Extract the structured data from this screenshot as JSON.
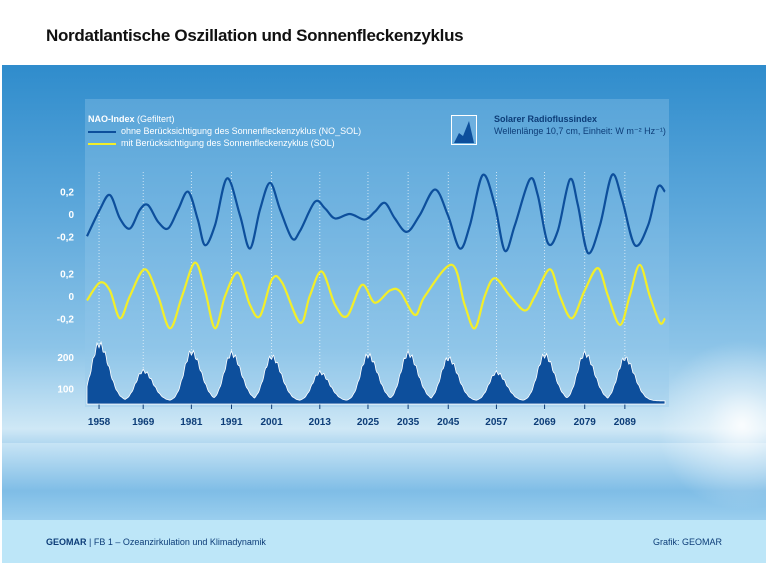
{
  "title": "Nordatlantische Oszillation und Sonnenfleckenzyklus",
  "footer": {
    "left_bold": "GEOMAR",
    "left_rest": " | FB 1 – Ozeanzirkulation und Klimadynamik",
    "right": "Grafik: GEOMAR"
  },
  "legend": {
    "heading": "NAO-Index",
    "heading_note": "(Gefiltert)",
    "no_sol": "ohne Berücksichtigung des Sonnenfleckenzyklus (NO_SOL)",
    "sol": "mit Berücksichtigung des Sonnenfleckenzyklus (SOL)",
    "flux_title": "Solarer Radioflussindex",
    "flux_sub": "Wellenlänge 10,7 cm, Einheit: W m⁻² Hz⁻¹)"
  },
  "colors": {
    "no_sol": "#0d4f9c",
    "sol": "#f2ee2a",
    "flux": "#0d4f9c"
  },
  "chart_data": [
    {
      "type": "line",
      "name": "NO_SOL",
      "ylim": [
        -0.35,
        0.35
      ],
      "yticks": [
        "0,2",
        "0",
        "-0,2"
      ],
      "ytick_values": [
        0.2,
        0,
        -0.2
      ],
      "x": [
        1955,
        1958.2,
        1960.7,
        1963.2,
        1965.7,
        1968.2,
        1970.2,
        1972.7,
        1975.2,
        1977.7,
        1980.2,
        1982.6,
        1984.4,
        1986.9,
        1989.9,
        1993.1,
        1995.6,
        1998.1,
        2000.6,
        2003.1,
        2006.1,
        2008.1,
        2011.8,
        2014.3,
        2016.8,
        2020.5,
        2024.2,
        2026.7,
        2029.2,
        2031.7,
        2034.7,
        2037.9,
        2041.7,
        2044.9,
        2047.9,
        2050.4,
        2053.6,
        2056.6,
        2059.1,
        2061.6,
        2065.3,
        2067.3,
        2069.8,
        2072.3,
        2075.3,
        2077.3,
        2079.8,
        2082.8,
        2085.8,
        2088.3,
        2091.5,
        2094.8,
        2097.2,
        2099
      ],
      "y": [
        -0.2,
        0.04,
        0.17,
        -0.04,
        -0.13,
        0.04,
        0.08,
        -0.07,
        -0.13,
        0.04,
        0.2,
        -0.05,
        -0.28,
        -0.1,
        0.32,
        -0.01,
        -0.31,
        0.04,
        0.28,
        0.04,
        -0.22,
        -0.15,
        0.11,
        0.05,
        -0.04,
        0,
        -0.05,
        0.02,
        0.1,
        -0.04,
        -0.16,
        -0.01,
        0.22,
        -0.01,
        -0.31,
        -0.1,
        0.35,
        0.08,
        -0.33,
        -0.1,
        0.31,
        0.17,
        -0.26,
        -0.15,
        0.31,
        0.08,
        -0.35,
        -0.1,
        0.35,
        0.13,
        -0.28,
        -0.1,
        0.24,
        0.2
      ]
    },
    {
      "type": "line",
      "name": "SOL",
      "ylim": [
        -0.35,
        0.35
      ],
      "yticks": [
        "0,2",
        "0",
        "-0,2"
      ],
      "ytick_values": [
        0.2,
        0,
        -0.2
      ],
      "x": [
        1955,
        1958.2,
        1960.7,
        1963.2,
        1965.7,
        1969.4,
        1972.7,
        1975.7,
        1978.7,
        1981.9,
        1984.4,
        1986.9,
        1989.4,
        1992.6,
        1995.6,
        1998.1,
        2001.1,
        2003.6,
        2008.1,
        2010.5,
        2013.5,
        2016.8,
        2019.8,
        2023.5,
        2026.7,
        2030.5,
        2033,
        2036.7,
        2039.2,
        2045.9,
        2049.1,
        2051.6,
        2054.1,
        2056.6,
        2060.4,
        2064.1,
        2066.6,
        2070.3,
        2072.8,
        2075.8,
        2079,
        2082.3,
        2084.8,
        2087.8,
        2090.2,
        2092.7,
        2095.2,
        2097.7,
        2099
      ],
      "y": [
        -0.04,
        0.12,
        0.05,
        -0.2,
        0,
        0.24,
        0,
        -0.29,
        0,
        0.3,
        0.05,
        -0.29,
        0,
        0.21,
        -0.08,
        -0.18,
        0.15,
        0.12,
        -0.24,
        0,
        0.22,
        -0.08,
        -0.18,
        0.1,
        -0.06,
        0.05,
        0.04,
        -0.17,
        0,
        0.28,
        -0.08,
        -0.29,
        0,
        0.16,
        0,
        -0.13,
        0,
        0.24,
        0,
        -0.2,
        0.05,
        0.25,
        0,
        -0.26,
        0,
        0.28,
        0,
        -0.24,
        -0.2
      ]
    },
    {
      "type": "area",
      "name": "Solarer Radioflussindex",
      "ylim": [
        50,
        260
      ],
      "yticks": [
        "200",
        "100"
      ],
      "ytick_values": [
        200,
        100
      ],
      "min_value": 60,
      "cycles": [
        {
          "peak": 1958,
          "value": 240
        },
        {
          "peak": 1969,
          "value": 155
        },
        {
          "peak": 1981,
          "value": 215
        },
        {
          "peak": 1991,
          "value": 210
        },
        {
          "peak": 2001,
          "value": 200
        },
        {
          "peak": 2013,
          "value": 150
        },
        {
          "peak": 2025,
          "value": 205
        },
        {
          "peak": 2035,
          "value": 210
        },
        {
          "peak": 2045,
          "value": 195
        },
        {
          "peak": 2057,
          "value": 150
        },
        {
          "peak": 2069,
          "value": 205
        },
        {
          "peak": 2079,
          "value": 210
        },
        {
          "peak": 2089,
          "value": 195
        }
      ]
    }
  ],
  "xaxis": {
    "range": [
      1955,
      2099
    ],
    "ticks": [
      1958,
      1969,
      1981,
      1991,
      2001,
      2013,
      2025,
      2035,
      2045,
      2057,
      2069,
      2079,
      2089
    ]
  }
}
